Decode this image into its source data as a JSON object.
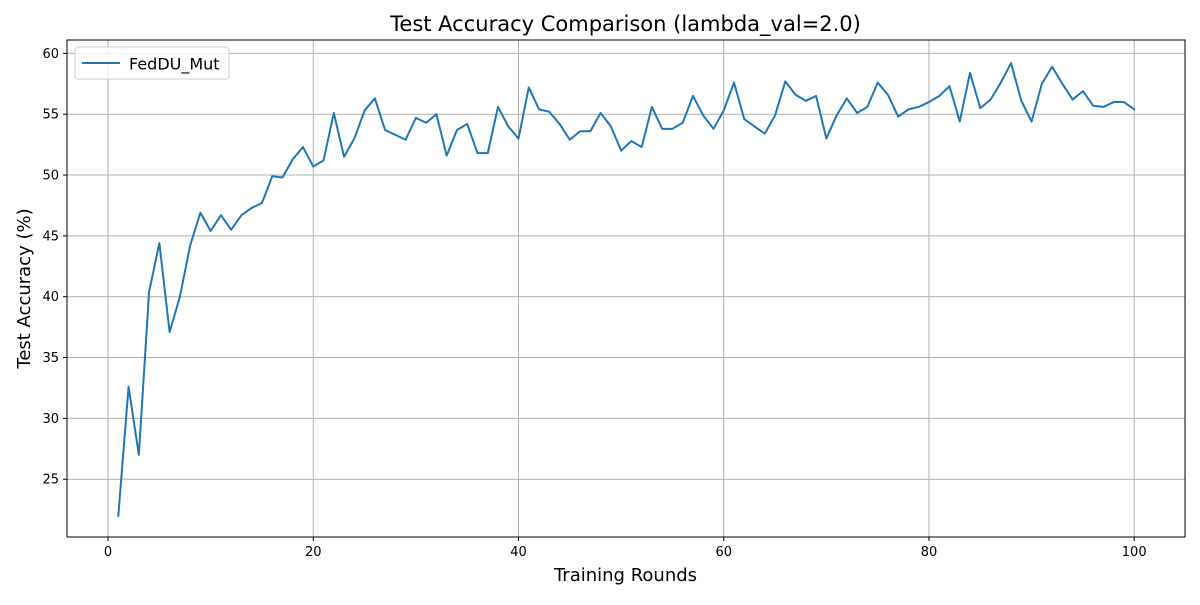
{
  "chart_data": {
    "type": "line",
    "title": "Test Accuracy Comparison (lambda_val=2.0)",
    "xlabel": "Training Rounds",
    "ylabel": "Test Accuracy (%)",
    "xlim": [
      -4,
      104.95
    ],
    "ylim": [
      20.25,
      61.1
    ],
    "xticks": [
      0,
      20,
      40,
      60,
      80,
      100
    ],
    "yticks": [
      25,
      30,
      35,
      40,
      45,
      50,
      55,
      60
    ],
    "grid": true,
    "legend_position": "upper left",
    "series": [
      {
        "name": "FedDU_Mut",
        "color": "#1f77b4",
        "x": [
          1,
          2,
          3,
          4,
          5,
          6,
          7,
          8,
          9,
          10,
          11,
          12,
          13,
          14,
          15,
          16,
          17,
          18,
          19,
          20,
          21,
          22,
          23,
          24,
          25,
          26,
          27,
          28,
          29,
          30,
          31,
          32,
          33,
          34,
          35,
          36,
          37,
          38,
          39,
          40,
          41,
          42,
          43,
          44,
          45,
          46,
          47,
          48,
          49,
          50,
          51,
          52,
          53,
          54,
          55,
          56,
          57,
          58,
          59,
          60,
          61,
          62,
          63,
          64,
          65,
          66,
          67,
          68,
          69,
          70,
          71,
          72,
          73,
          74,
          75,
          76,
          77,
          78,
          79,
          80,
          81,
          82,
          83,
          84,
          85,
          86,
          87,
          88,
          89,
          90,
          91,
          92,
          93,
          94,
          95,
          96,
          97,
          98,
          99,
          100
        ],
        "values": [
          22.0,
          32.6,
          27.0,
          40.4,
          44.4,
          37.1,
          40.0,
          44.2,
          46.9,
          45.4,
          46.7,
          45.5,
          46.7,
          47.3,
          47.7,
          49.9,
          49.8,
          51.3,
          52.3,
          50.7,
          51.2,
          55.1,
          51.5,
          53.0,
          55.3,
          56.3,
          53.7,
          53.3,
          52.9,
          54.7,
          54.3,
          55.0,
          51.6,
          53.7,
          54.2,
          51.8,
          51.8,
          55.6,
          54.0,
          53.0,
          57.2,
          55.4,
          55.2,
          54.2,
          52.9,
          53.6,
          53.6,
          55.1,
          54.0,
          52.0,
          52.8,
          52.3,
          55.6,
          53.8,
          53.8,
          54.3,
          56.5,
          54.9,
          53.8,
          55.3,
          57.6,
          54.6,
          54.0,
          53.4,
          54.9,
          57.7,
          56.6,
          56.1,
          56.5,
          53.0,
          54.9,
          56.3,
          55.1,
          55.6,
          57.6,
          56.6,
          54.8,
          55.4,
          55.6,
          56.0,
          56.5,
          57.3,
          54.4,
          58.4,
          55.5,
          56.2,
          57.6,
          59.2,
          56.1,
          54.4,
          57.5,
          58.9,
          57.5,
          56.2,
          56.9,
          55.7,
          55.6,
          56.0,
          56.0,
          55.4
        ]
      }
    ]
  }
}
